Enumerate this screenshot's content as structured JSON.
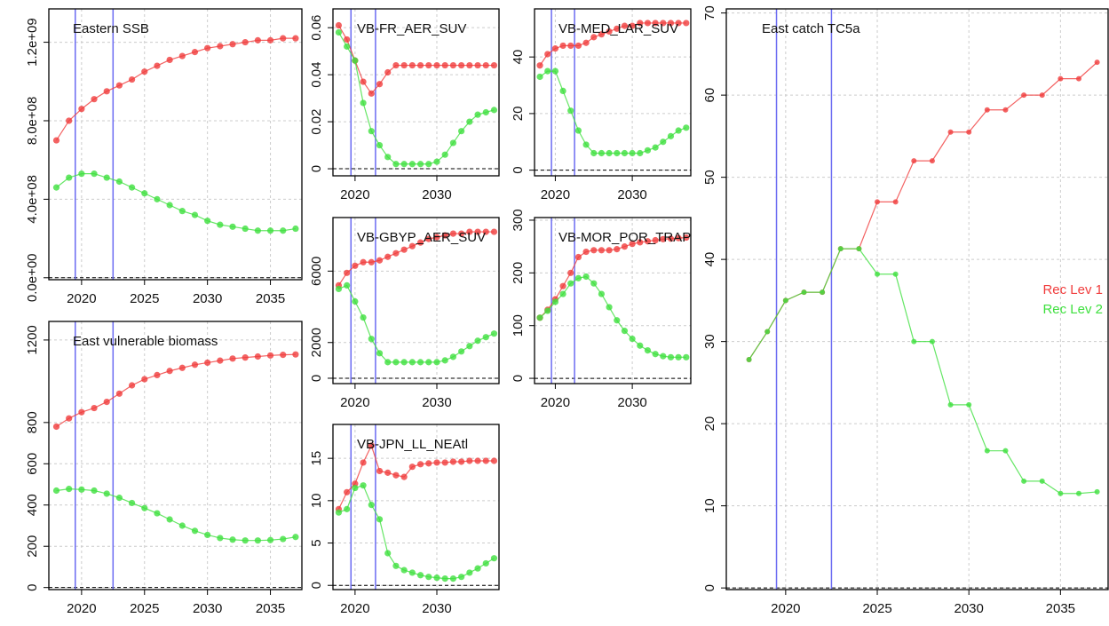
{
  "chart_data": [
    {
      "type": "line",
      "title": "Eastern SSB",
      "x": [
        2018,
        2019,
        2020,
        2021,
        2022,
        2023,
        2024,
        2025,
        2026,
        2027,
        2028,
        2029,
        2030,
        2031,
        2032,
        2033,
        2034,
        2035,
        2036,
        2037
      ],
      "xlim": [
        2017.4,
        2037.5
      ],
      "xticks": [
        2020,
        2025,
        2030,
        2035
      ],
      "ylim": [
        -10000000,
        1370000000
      ],
      "yticks": [
        {
          "value": 0,
          "label": "0.0e+00"
        },
        {
          "value": 400000000,
          "label": "4.0e+08"
        },
        {
          "value": 800000000,
          "label": "8.0e+08"
        },
        {
          "value": 1200000000,
          "label": "1.2e+09"
        }
      ],
      "grid": true,
      "vlines": [
        2019.5,
        2022.5
      ],
      "vline_color": "#6b6bf2",
      "series": [
        {
          "color": "#f03c3c",
          "values": [
            700000000,
            800000000,
            860000000,
            910000000,
            950000000,
            980000000,
            1010000000,
            1050000000,
            1080000000,
            1110000000,
            1130000000,
            1150000000,
            1170000000,
            1180000000,
            1190000000,
            1200000000,
            1210000000,
            1210000000,
            1220000000,
            1220000000
          ]
        },
        {
          "color": "#3ee03e",
          "values": [
            460000000,
            510000000,
            530000000,
            530000000,
            510000000,
            490000000,
            460000000,
            430000000,
            400000000,
            370000000,
            340000000,
            320000000,
            290000000,
            270000000,
            260000000,
            250000000,
            240000000,
            240000000,
            240000000,
            250000000
          ]
        }
      ]
    },
    {
      "type": "line",
      "title": "East vulnerable biomass",
      "x": [
        2018,
        2019,
        2020,
        2021,
        2022,
        2023,
        2024,
        2025,
        2026,
        2027,
        2028,
        2029,
        2030,
        2031,
        2032,
        2033,
        2034,
        2035,
        2036,
        2037
      ],
      "xlim": [
        2017.4,
        2037.5
      ],
      "xticks": [
        2020,
        2025,
        2030,
        2035
      ],
      "ylim": [
        -10,
        1290
      ],
      "yticks": [
        0,
        200,
        400,
        600,
        800,
        1200
      ],
      "grid": true,
      "vlines": [
        2019.5,
        2022.5
      ],
      "vline_color": "#6b6bf2",
      "series": [
        {
          "color": "#f03c3c",
          "values": [
            780,
            820,
            850,
            870,
            900,
            940,
            980,
            1010,
            1030,
            1050,
            1065,
            1080,
            1090,
            1100,
            1110,
            1115,
            1120,
            1125,
            1128,
            1130
          ]
        },
        {
          "color": "#3ee03e",
          "values": [
            470,
            478,
            475,
            470,
            455,
            435,
            410,
            385,
            360,
            330,
            300,
            275,
            255,
            240,
            232,
            228,
            228,
            230,
            235,
            245
          ]
        }
      ]
    },
    {
      "type": "line",
      "title": "VB-FR_AER_SUV",
      "x": [
        2018,
        2019,
        2020,
        2021,
        2022,
        2023,
        2024,
        2025,
        2026,
        2027,
        2028,
        2029,
        2030,
        2031,
        2032,
        2033,
        2034,
        2035,
        2036,
        2037
      ],
      "xlim": [
        2017.3,
        2037.6
      ],
      "xticks": [
        2020,
        2030
      ],
      "ylim": [
        -0.003,
        0.068
      ],
      "yticks": [
        0,
        0.02,
        0.04,
        0.06
      ],
      "grid": true,
      "vlines": [
        2019.5,
        2022.5
      ],
      "vline_color": "#6b6bf2",
      "series": [
        {
          "color": "#f03c3c",
          "values": [
            0.061,
            0.055,
            0.046,
            0.037,
            0.032,
            0.036,
            0.041,
            0.044,
            0.044,
            0.044,
            0.044,
            0.044,
            0.044,
            0.044,
            0.044,
            0.044,
            0.044,
            0.044,
            0.044,
            0.044
          ]
        },
        {
          "color": "#3ee03e",
          "values": [
            0.058,
            0.052,
            0.046,
            0.028,
            0.016,
            0.01,
            0.005,
            0.002,
            0.002,
            0.002,
            0.002,
            0.002,
            0.003,
            0.006,
            0.011,
            0.016,
            0.02,
            0.023,
            0.024,
            0.025
          ]
        }
      ]
    },
    {
      "type": "line",
      "title": "VB-MED_LAR_SUV",
      "x": [
        2018,
        2019,
        2020,
        2021,
        2022,
        2023,
        2024,
        2025,
        2026,
        2027,
        2028,
        2029,
        2030,
        2031,
        2032,
        2033,
        2034,
        2035,
        2036,
        2037
      ],
      "xlim": [
        2017.3,
        2037.6
      ],
      "xticks": [
        2020,
        2030
      ],
      "ylim": [
        -2,
        57
      ],
      "yticks": [
        0,
        20,
        40
      ],
      "grid": true,
      "vlines": [
        2019.5,
        2022.5
      ],
      "vline_color": "#6b6bf2",
      "series": [
        {
          "color": "#f03c3c",
          "values": [
            37,
            41,
            43,
            44,
            44,
            44,
            45,
            47,
            48,
            49,
            50,
            51,
            51,
            52,
            52,
            52,
            52,
            52,
            52,
            52
          ]
        },
        {
          "color": "#3ee03e",
          "values": [
            33,
            35,
            35,
            28,
            21,
            14,
            9,
            6,
            6,
            6,
            6,
            6,
            6,
            6,
            7,
            8,
            10,
            12,
            14,
            15
          ]
        }
      ]
    },
    {
      "type": "line",
      "title": "VB-GBYP_AER_SUV",
      "x": [
        2018,
        2019,
        2020,
        2021,
        2022,
        2023,
        2024,
        2025,
        2026,
        2027,
        2028,
        2029,
        2030,
        2031,
        2032,
        2033,
        2034,
        2035,
        2036,
        2037
      ],
      "xlim": [
        2017.3,
        2037.6
      ],
      "xticks": [
        2020,
        2030
      ],
      "ylim": [
        -300,
        9000
      ],
      "yticks": [
        0,
        2000,
        6000
      ],
      "grid": true,
      "vlines": [
        2019.5,
        2022.5
      ],
      "vline_color": "#6b6bf2",
      "series": [
        {
          "color": "#f03c3c",
          "values": [
            5200,
            5900,
            6300,
            6500,
            6500,
            6600,
            6800,
            7000,
            7200,
            7400,
            7600,
            7800,
            7900,
            8000,
            8100,
            8100,
            8200,
            8200,
            8200,
            8200
          ]
        },
        {
          "color": "#3ee03e",
          "values": [
            5000,
            5200,
            4300,
            3400,
            2200,
            1400,
            900,
            900,
            900,
            900,
            900,
            900,
            900,
            1000,
            1200,
            1500,
            1800,
            2100,
            2300,
            2500
          ]
        }
      ]
    },
    {
      "type": "line",
      "title": "VB-MOR_POR_TRAP",
      "x": [
        2018,
        2019,
        2020,
        2021,
        2022,
        2023,
        2024,
        2025,
        2026,
        2027,
        2028,
        2029,
        2030,
        2031,
        2032,
        2033,
        2034,
        2035,
        2036,
        2037
      ],
      "xlim": [
        2017.3,
        2037.6
      ],
      "xticks": [
        2020,
        2030
      ],
      "ylim": [
        -10,
        305
      ],
      "yticks": [
        0,
        100,
        200,
        300
      ],
      "grid": true,
      "vlines": [
        2019.5,
        2022.5
      ],
      "vline_color": "#6b6bf2",
      "series": [
        {
          "color": "#f03c3c",
          "values": [
            115,
            130,
            150,
            175,
            200,
            230,
            240,
            243,
            243,
            243,
            245,
            250,
            255,
            258,
            260,
            262,
            264,
            265,
            266,
            267
          ]
        },
        {
          "color": "#3ee03e",
          "values": [
            115,
            128,
            145,
            160,
            180,
            190,
            193,
            180,
            160,
            135,
            110,
            90,
            75,
            62,
            53,
            46,
            42,
            40,
            40,
            40
          ]
        }
      ]
    },
    {
      "type": "line",
      "title": "VB-JPN_LL_NEAtl",
      "x": [
        2018,
        2019,
        2020,
        2021,
        2022,
        2023,
        2024,
        2025,
        2026,
        2027,
        2028,
        2029,
        2030,
        2031,
        2032,
        2033,
        2034,
        2035,
        2036,
        2037
      ],
      "xlim": [
        2017.3,
        2037.6
      ],
      "xticks": [
        2020,
        2030
      ],
      "ylim": [
        -0.5,
        19
      ],
      "yticks": [
        0,
        5,
        10,
        15
      ],
      "grid": true,
      "vlines": [
        2019.5,
        2022.5
      ],
      "vline_color": "#6b6bf2",
      "series": [
        {
          "color": "#f03c3c",
          "values": [
            9,
            11,
            12,
            14.5,
            16.5,
            13.5,
            13.3,
            13,
            12.8,
            14,
            14.3,
            14.4,
            14.5,
            14.5,
            14.6,
            14.6,
            14.7,
            14.7,
            14.7,
            14.7
          ]
        },
        {
          "color": "#3ee03e",
          "values": [
            8.6,
            9,
            11.5,
            11.8,
            9.5,
            7.8,
            3.8,
            2.3,
            1.8,
            1.5,
            1.2,
            1,
            0.9,
            0.8,
            0.8,
            1,
            1.5,
            2,
            2.6,
            3.2
          ]
        }
      ]
    },
    {
      "type": "line",
      "title": "East catch TC5a",
      "x": [
        2018,
        2019,
        2020,
        2021,
        2022,
        2023,
        2024,
        2025,
        2026,
        2027,
        2028,
        2029,
        2030,
        2031,
        2032,
        2033,
        2034,
        2035,
        2036,
        2037
      ],
      "xlim": [
        2016.76,
        2037.6
      ],
      "xticks": [
        2020,
        2025,
        2030,
        2035
      ],
      "ylim": [
        -0.2,
        70.5
      ],
      "yticks": [
        0,
        10,
        20,
        30,
        40,
        50,
        60,
        70
      ],
      "grid": true,
      "vlines": [
        2019.5,
        2022.5
      ],
      "vline_color": "#6b6bf2",
      "legend": "right",
      "series": [
        {
          "name": "Rec Lev 1",
          "color": "#f03c3c",
          "values": [
            27.8,
            31.2,
            35,
            36,
            36,
            41.3,
            41.3,
            47,
            47,
            52,
            52,
            55.5,
            55.5,
            58.2,
            58.2,
            60,
            60,
            62,
            62,
            64
          ]
        },
        {
          "name": "Rec Lev 2",
          "color": "#3ee03e",
          "values": [
            27.8,
            31.2,
            35,
            36,
            36,
            41.3,
            41.3,
            38.2,
            38.2,
            30,
            30,
            22.3,
            22.3,
            16.7,
            16.7,
            13,
            13,
            11.5,
            11.5,
            11.7
          ]
        }
      ]
    }
  ]
}
